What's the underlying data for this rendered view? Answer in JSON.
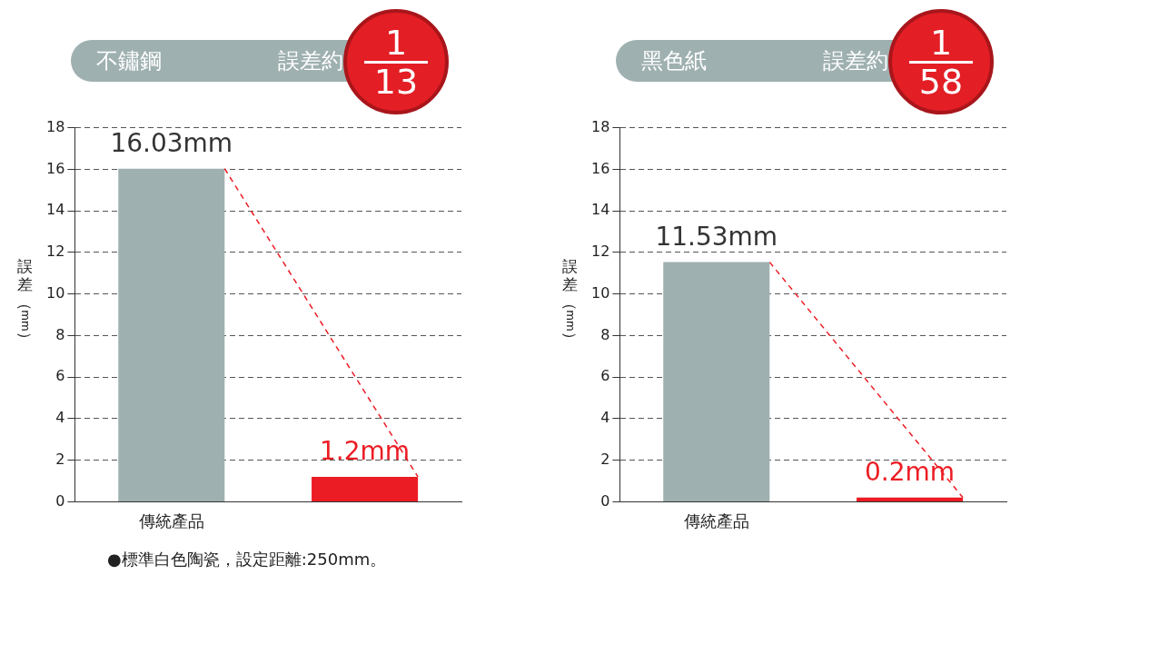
{
  "chart_data": [
    {
      "type": "bar",
      "title": "不鏽鋼",
      "subtitle": "誤差約",
      "ylabel": "誤差（mm）",
      "categories": [
        "傳統產品",
        null
      ],
      "values": [
        16.03,
        1.2
      ],
      "colors": [
        "#9fb0b0",
        "#ec1c24"
      ],
      "value_labels": [
        "16.03mm",
        "1.2mm"
      ],
      "ylim": [
        0,
        18
      ],
      "yticks": [
        0,
        2,
        4,
        6,
        8,
        10,
        12,
        14,
        16,
        18
      ],
      "grid": "y",
      "annotations": [
        "1",
        "13",
        "●標準白色陶瓷，設定距離:250mm。"
      ]
    },
    {
      "type": "bar",
      "title": "黑色紙",
      "subtitle": "誤差約",
      "ylabel": "誤差（mm）",
      "categories": [
        "傳統產品",
        null
      ],
      "values": [
        11.53,
        0.2
      ],
      "colors": [
        "#9fb0b0",
        "#ec1c24"
      ],
      "value_labels": [
        "11.53mm",
        "0.2mm"
      ],
      "ylim": [
        0,
        18
      ],
      "yticks": [
        0,
        2,
        4,
        6,
        8,
        10,
        12,
        14,
        16,
        18
      ],
      "grid": "y",
      "annotations": [
        "1",
        "58"
      ]
    }
  ]
}
